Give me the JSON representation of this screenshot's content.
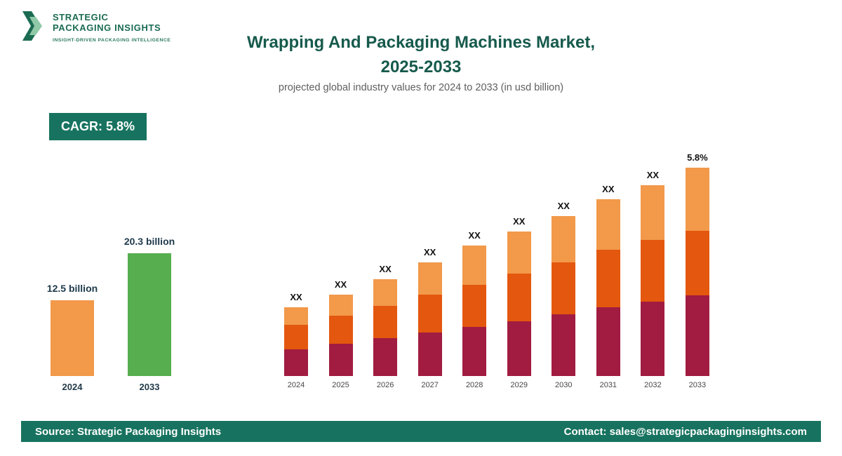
{
  "logo": {
    "line1": "STRATEGIC",
    "line2": "PACKAGING INSIGHTS",
    "tagline": "INSIGHT-DRIVEN PACKAGING INTELLIGENCE"
  },
  "header": {
    "title_line1": "Wrapping And Packaging Machines Market,",
    "title_line2": "2025-2033",
    "subtitle": "projected global industry values for 2024 to 2033 (in usd billion)"
  },
  "cagr_badge": "CAGR: 5.8%",
  "mini_chart": {
    "type": "bar",
    "unit": "usd billion",
    "bars": [
      {
        "year": "2024",
        "value": 12.5,
        "label": "12.5 billion",
        "color": "#f2994a"
      },
      {
        "year": "2033",
        "value": 20.3,
        "label": "20.3 billion",
        "color": "#56ae4e"
      }
    ]
  },
  "chart_data": {
    "type": "stacked-bar",
    "title": "Wrapping And Packaging Machines Market, 2025-2033",
    "categories": [
      "2024",
      "2025",
      "2026",
      "2027",
      "2028",
      "2029",
      "2030",
      "2031",
      "2032",
      "2033"
    ],
    "value_labels": [
      "XX",
      "XX",
      "XX",
      "XX",
      "XX",
      "XX",
      "XX",
      "XX",
      "XX",
      "5.8%"
    ],
    "series": [
      {
        "name": "segment-bottom",
        "color": "#a11c40",
        "values": [
          38,
          46,
          54,
          62,
          70,
          78,
          88,
          98,
          106,
          115
        ]
      },
      {
        "name": "segment-middle",
        "color": "#e4570e",
        "values": [
          35,
          40,
          46,
          54,
          60,
          68,
          74,
          82,
          88,
          92
        ]
      },
      {
        "name": "segment-top",
        "color": "#f2994a",
        "values": [
          25,
          30,
          38,
          46,
          56,
          60,
          66,
          72,
          78,
          90
        ]
      }
    ],
    "legend": "none",
    "grid": "off",
    "ylabel": "",
    "xlabel": ""
  },
  "footer": {
    "source": "Source: Strategic Packaging Insights",
    "contact": "Contact: sales@strategicpackaginginsights.com"
  },
  "colors": {
    "brand_green": "#17735f",
    "title_green": "#165a4c",
    "logo_chevron_dark": "#1b6b52",
    "logo_chevron_light": "#8fc9a8"
  }
}
